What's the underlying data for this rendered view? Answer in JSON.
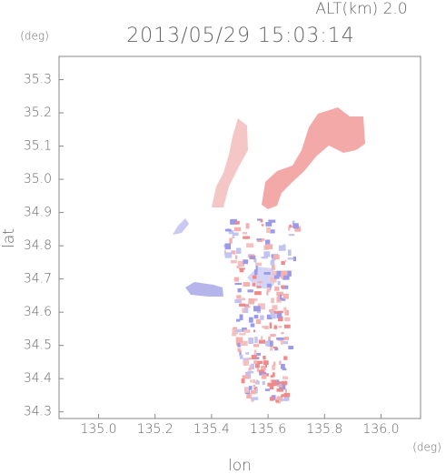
{
  "chart_data": {
    "type": "radar-map",
    "title": "2013/05/29 15:03:14",
    "altitude_label": "ALT(km) 2.0",
    "x_label": "lon",
    "y_label": "lat",
    "x_unit": "(deg)",
    "y_unit": "(deg)",
    "xlim": [
      134.86,
      136.14
    ],
    "xticks": [
      {
        "value": 135.0,
        "label": "135.0"
      },
      135.2,
      135.4,
      135.6,
      135.8,
      {
        "value": 136.0,
        "label": "136.0"
      }
    ],
    "ylim": [
      34.28,
      35.37
    ],
    "yticks": [
      34.3,
      34.4,
      34.5,
      34.6,
      34.7,
      34.8,
      34.9,
      {
        "value": 35.0,
        "label": "35.0"
      },
      35.1,
      35.2,
      35.3
    ],
    "color": "#666666"
  }
}
